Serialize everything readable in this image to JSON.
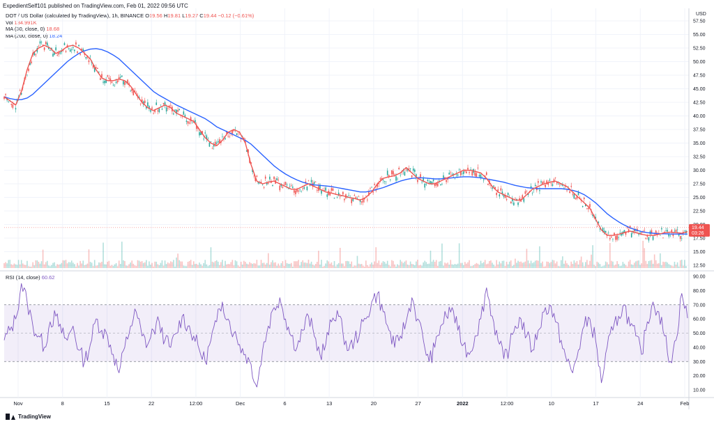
{
  "header": {
    "text": "ExpedientSelf101 published on TradingView.com, Feb 01, 2022 09:56 UTC"
  },
  "legend": {
    "symbol": "DOT / US Dollar (calculated by TradingView), 1h, BINANCE",
    "ohlc": {
      "o_label": "O",
      "o": "19.56",
      "h_label": "H",
      "h": "19.81",
      "l_label": "L",
      "l": "19.27",
      "c_label": "C",
      "c": "19.44",
      "chg": "−0.12 (−0.61%)"
    },
    "vol_label": "Vol",
    "vol": "134.991K",
    "ma30_label": "MA (30, close, 0)",
    "ma30": "18.68",
    "ma200_label": "MA (200, close, 0)",
    "ma200": "18.24",
    "rsi_label": "RSI (14, close)",
    "rsi": "60.62"
  },
  "currency": "USD",
  "price_tag": {
    "value": "19.44",
    "countdown": "03:26"
  },
  "footer": {
    "brand": "TradingView"
  },
  "colors": {
    "ma_short": "#ef5350",
    "ma_long": "#2962ff",
    "rsi": "#7e57c2",
    "up": "#26a69a",
    "down": "#ef5350"
  },
  "chart_data": [
    {
      "type": "line",
      "pane": "price",
      "y_ticks": [
        "57.50",
        "55.00",
        "52.50",
        "50.00",
        "47.50",
        "45.00",
        "42.50",
        "40.00",
        "37.50",
        "35.00",
        "32.50",
        "30.00",
        "27.50",
        "25.00",
        "22.50",
        "20.00",
        "17.50",
        "15.00",
        "12.50"
      ],
      "ylim": [
        12.5,
        57.5
      ],
      "x_ticks": [
        "Nov",
        "8",
        "15",
        "22",
        "12:00",
        "Dec",
        "6",
        "13",
        "20",
        "27",
        "2022",
        "12:00",
        "10",
        "17",
        "24",
        "Feb"
      ],
      "series": [
        {
          "name": "MA (30, close, 0)",
          "values": [
            43.5,
            42.8,
            42.0,
            44.5,
            48.5,
            51.5,
            52.5,
            53.0,
            52.5,
            51.5,
            52.0,
            52.8,
            53.0,
            52.5,
            51.5,
            50.5,
            48.5,
            47.0,
            46.5,
            46.5,
            46.8,
            46.5,
            45.5,
            44.0,
            42.5,
            41.5,
            41.0,
            41.5,
            42.0,
            41.5,
            40.5,
            40.0,
            39.5,
            39.0,
            37.5,
            36.0,
            35.0,
            34.5,
            35.5,
            37.0,
            37.5,
            37.0,
            35.0,
            31.0,
            28.0,
            27.5,
            27.8,
            28.0,
            27.5,
            27.0,
            26.5,
            26.5,
            27.0,
            27.5,
            27.0,
            26.5,
            26.0,
            25.8,
            25.5,
            25.3,
            25.0,
            24.8,
            24.5,
            25.0,
            26.0,
            27.5,
            28.5,
            28.8,
            29.0,
            29.5,
            30.5,
            29.5,
            28.5,
            28.0,
            27.5,
            27.5,
            28.0,
            28.5,
            29.0,
            29.5,
            30.0,
            30.0,
            29.8,
            29.5,
            28.5,
            27.0,
            26.0,
            25.5,
            25.0,
            24.5,
            24.5,
            25.5,
            26.5,
            27.0,
            27.5,
            27.8,
            28.0,
            27.5,
            27.0,
            26.0,
            25.0,
            24.0,
            23.0,
            21.0,
            19.0,
            18.0,
            18.0,
            18.2,
            18.5,
            18.8,
            18.5,
            18.2,
            18.0,
            18.0,
            18.2,
            18.5,
            18.6,
            18.5,
            18.4,
            18.68
          ]
        },
        {
          "name": "MA (200, close, 0)",
          "values": [
            43.5,
            43.2,
            43.0,
            43.0,
            43.3,
            44.0,
            45.0,
            46.0,
            47.0,
            48.0,
            49.0,
            50.0,
            50.8,
            51.5,
            52.0,
            52.3,
            52.4,
            52.2,
            51.8,
            51.2,
            50.5,
            49.5,
            48.5,
            47.5,
            46.5,
            45.5,
            44.5,
            43.8,
            43.2,
            42.6,
            42.0,
            41.5,
            41.0,
            40.5,
            40.0,
            39.5,
            38.8,
            38.0,
            37.5,
            37.0,
            36.5,
            36.0,
            35.5,
            34.8,
            33.8,
            32.8,
            31.8,
            30.8,
            30.0,
            29.3,
            28.7,
            28.2,
            27.8,
            27.5,
            27.3,
            27.2,
            27.1,
            27.0,
            26.8,
            26.6,
            26.4,
            26.2,
            26.0,
            26.0,
            26.2,
            26.5,
            26.8,
            27.2,
            27.6,
            28.0,
            28.3,
            28.5,
            28.6,
            28.6,
            28.5,
            28.4,
            28.4,
            28.5,
            28.6,
            28.7,
            28.8,
            28.8,
            28.7,
            28.6,
            28.4,
            28.2,
            28.0,
            27.8,
            27.5,
            27.2,
            27.0,
            26.8,
            26.7,
            26.6,
            26.6,
            26.6,
            26.6,
            26.6,
            26.5,
            26.3,
            26.0,
            25.5,
            24.8,
            24.0,
            23.0,
            22.0,
            21.2,
            20.5,
            19.9,
            19.4,
            19.0,
            18.7,
            18.5,
            18.4,
            18.3,
            18.3,
            18.25,
            18.24,
            18.24,
            18.24
          ]
        }
      ]
    },
    {
      "type": "line",
      "pane": "rsi",
      "series": [
        {
          "name": "RSI (14, close)",
          "values": [
            45,
            52,
            60,
            85,
            72,
            55,
            48,
            40,
            58,
            62,
            50,
            45,
            55,
            38,
            30,
            42,
            60,
            52,
            48,
            35,
            22,
            40,
            55,
            65,
            48,
            42,
            52,
            58,
            45,
            40,
            50,
            62,
            55,
            48,
            38,
            30,
            45,
            58,
            72,
            60,
            50,
            42,
            35,
            28,
            12,
            38,
            55,
            68,
            75,
            60,
            48,
            40,
            52,
            62,
            48,
            35,
            42,
            58,
            66,
            50,
            38,
            45,
            52,
            60,
            72,
            78,
            65,
            52,
            40,
            48,
            58,
            75,
            60,
            45,
            30,
            40,
            55,
            62,
            68,
            52,
            42,
            35,
            48,
            60,
            82,
            62,
            45,
            32,
            40,
            55,
            60,
            48,
            38,
            52,
            65,
            70,
            58,
            45,
            30,
            22,
            38,
            55,
            60,
            45,
            15,
            40,
            52,
            62,
            70,
            55,
            48,
            35,
            58,
            72,
            65,
            48,
            30,
            45,
            78,
            60.62
          ]
        }
      ],
      "y_ticks": [
        "90.00",
        "80.00",
        "70.00",
        "60.00",
        "50.00",
        "40.00",
        "30.00",
        "20.00",
        "10.00"
      ],
      "ylim": [
        10,
        90
      ],
      "bands": [
        70,
        50,
        30
      ]
    }
  ]
}
